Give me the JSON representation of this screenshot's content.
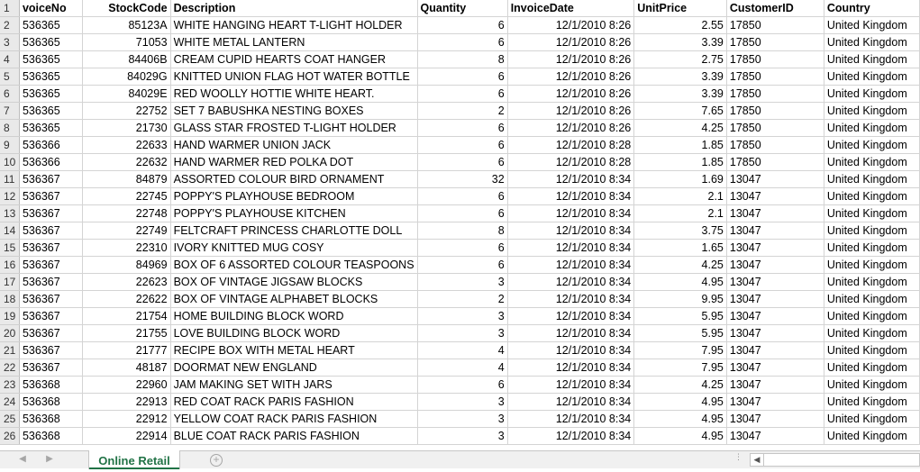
{
  "header": [
    "voiceNo",
    "StockCode",
    "Description",
    "Quantity",
    "InvoiceDate",
    "UnitPrice",
    "CustomerID",
    "Country"
  ],
  "rows": [
    [
      "536365",
      "85123A",
      "WHITE HANGING HEART T-LIGHT HOLDER",
      "6",
      "12/1/2010 8:26",
      "2.55",
      "17850",
      "United Kingdom"
    ],
    [
      "536365",
      "71053",
      "WHITE METAL LANTERN",
      "6",
      "12/1/2010 8:26",
      "3.39",
      "17850",
      "United Kingdom"
    ],
    [
      "536365",
      "84406B",
      "CREAM CUPID HEARTS COAT HANGER",
      "8",
      "12/1/2010 8:26",
      "2.75",
      "17850",
      "United Kingdom"
    ],
    [
      "536365",
      "84029G",
      "KNITTED UNION FLAG HOT WATER BOTTLE",
      "6",
      "12/1/2010 8:26",
      "3.39",
      "17850",
      "United Kingdom"
    ],
    [
      "536365",
      "84029E",
      "RED WOOLLY HOTTIE WHITE HEART.",
      "6",
      "12/1/2010 8:26",
      "3.39",
      "17850",
      "United Kingdom"
    ],
    [
      "536365",
      "22752",
      "SET 7 BABUSHKA NESTING BOXES",
      "2",
      "12/1/2010 8:26",
      "7.65",
      "17850",
      "United Kingdom"
    ],
    [
      "536365",
      "21730",
      "GLASS STAR FROSTED T-LIGHT HOLDER",
      "6",
      "12/1/2010 8:26",
      "4.25",
      "17850",
      "United Kingdom"
    ],
    [
      "536366",
      "22633",
      "HAND WARMER UNION JACK",
      "6",
      "12/1/2010 8:28",
      "1.85",
      "17850",
      "United Kingdom"
    ],
    [
      "536366",
      "22632",
      "HAND WARMER RED POLKA DOT",
      "6",
      "12/1/2010 8:28",
      "1.85",
      "17850",
      "United Kingdom"
    ],
    [
      "536367",
      "84879",
      "ASSORTED COLOUR BIRD ORNAMENT",
      "32",
      "12/1/2010 8:34",
      "1.69",
      "13047",
      "United Kingdom"
    ],
    [
      "536367",
      "22745",
      "POPPY'S PLAYHOUSE BEDROOM",
      "6",
      "12/1/2010 8:34",
      "2.1",
      "13047",
      "United Kingdom"
    ],
    [
      "536367",
      "22748",
      "POPPY'S PLAYHOUSE KITCHEN",
      "6",
      "12/1/2010 8:34",
      "2.1",
      "13047",
      "United Kingdom"
    ],
    [
      "536367",
      "22749",
      "FELTCRAFT PRINCESS CHARLOTTE DOLL",
      "8",
      "12/1/2010 8:34",
      "3.75",
      "13047",
      "United Kingdom"
    ],
    [
      "536367",
      "22310",
      "IVORY KNITTED MUG COSY",
      "6",
      "12/1/2010 8:34",
      "1.65",
      "13047",
      "United Kingdom"
    ],
    [
      "536367",
      "84969",
      "BOX OF 6 ASSORTED COLOUR TEASPOONS",
      "6",
      "12/1/2010 8:34",
      "4.25",
      "13047",
      "United Kingdom"
    ],
    [
      "536367",
      "22623",
      "BOX OF VINTAGE JIGSAW BLOCKS",
      "3",
      "12/1/2010 8:34",
      "4.95",
      "13047",
      "United Kingdom"
    ],
    [
      "536367",
      "22622",
      "BOX OF VINTAGE ALPHABET BLOCKS",
      "2",
      "12/1/2010 8:34",
      "9.95",
      "13047",
      "United Kingdom"
    ],
    [
      "536367",
      "21754",
      "HOME BUILDING BLOCK WORD",
      "3",
      "12/1/2010 8:34",
      "5.95",
      "13047",
      "United Kingdom"
    ],
    [
      "536367",
      "21755",
      "LOVE BUILDING BLOCK WORD",
      "3",
      "12/1/2010 8:34",
      "5.95",
      "13047",
      "United Kingdom"
    ],
    [
      "536367",
      "21777",
      "RECIPE BOX WITH METAL HEART",
      "4",
      "12/1/2010 8:34",
      "7.95",
      "13047",
      "United Kingdom"
    ],
    [
      "536367",
      "48187",
      "DOORMAT NEW ENGLAND",
      "4",
      "12/1/2010 8:34",
      "7.95",
      "13047",
      "United Kingdom"
    ],
    [
      "536368",
      "22960",
      "JAM MAKING SET WITH JARS",
      "6",
      "12/1/2010 8:34",
      "4.25",
      "13047",
      "United Kingdom"
    ],
    [
      "536368",
      "22913",
      "RED COAT RACK PARIS FASHION",
      "3",
      "12/1/2010 8:34",
      "4.95",
      "13047",
      "United Kingdom"
    ],
    [
      "536368",
      "22912",
      "YELLOW COAT RACK PARIS FASHION",
      "3",
      "12/1/2010 8:34",
      "4.95",
      "13047",
      "United Kingdom"
    ],
    [
      "536368",
      "22914",
      "BLUE COAT RACK PARIS FASHION",
      "3",
      "12/1/2010 8:34",
      "4.95",
      "13047",
      "United Kingdom"
    ]
  ],
  "sheet_tab": "Online Retail",
  "add_sheet_icon": "plus-circle-icon",
  "colors": {
    "accent": "#217346",
    "header_bg": "#e9e9e9",
    "gridline": "#d4d4d4"
  }
}
